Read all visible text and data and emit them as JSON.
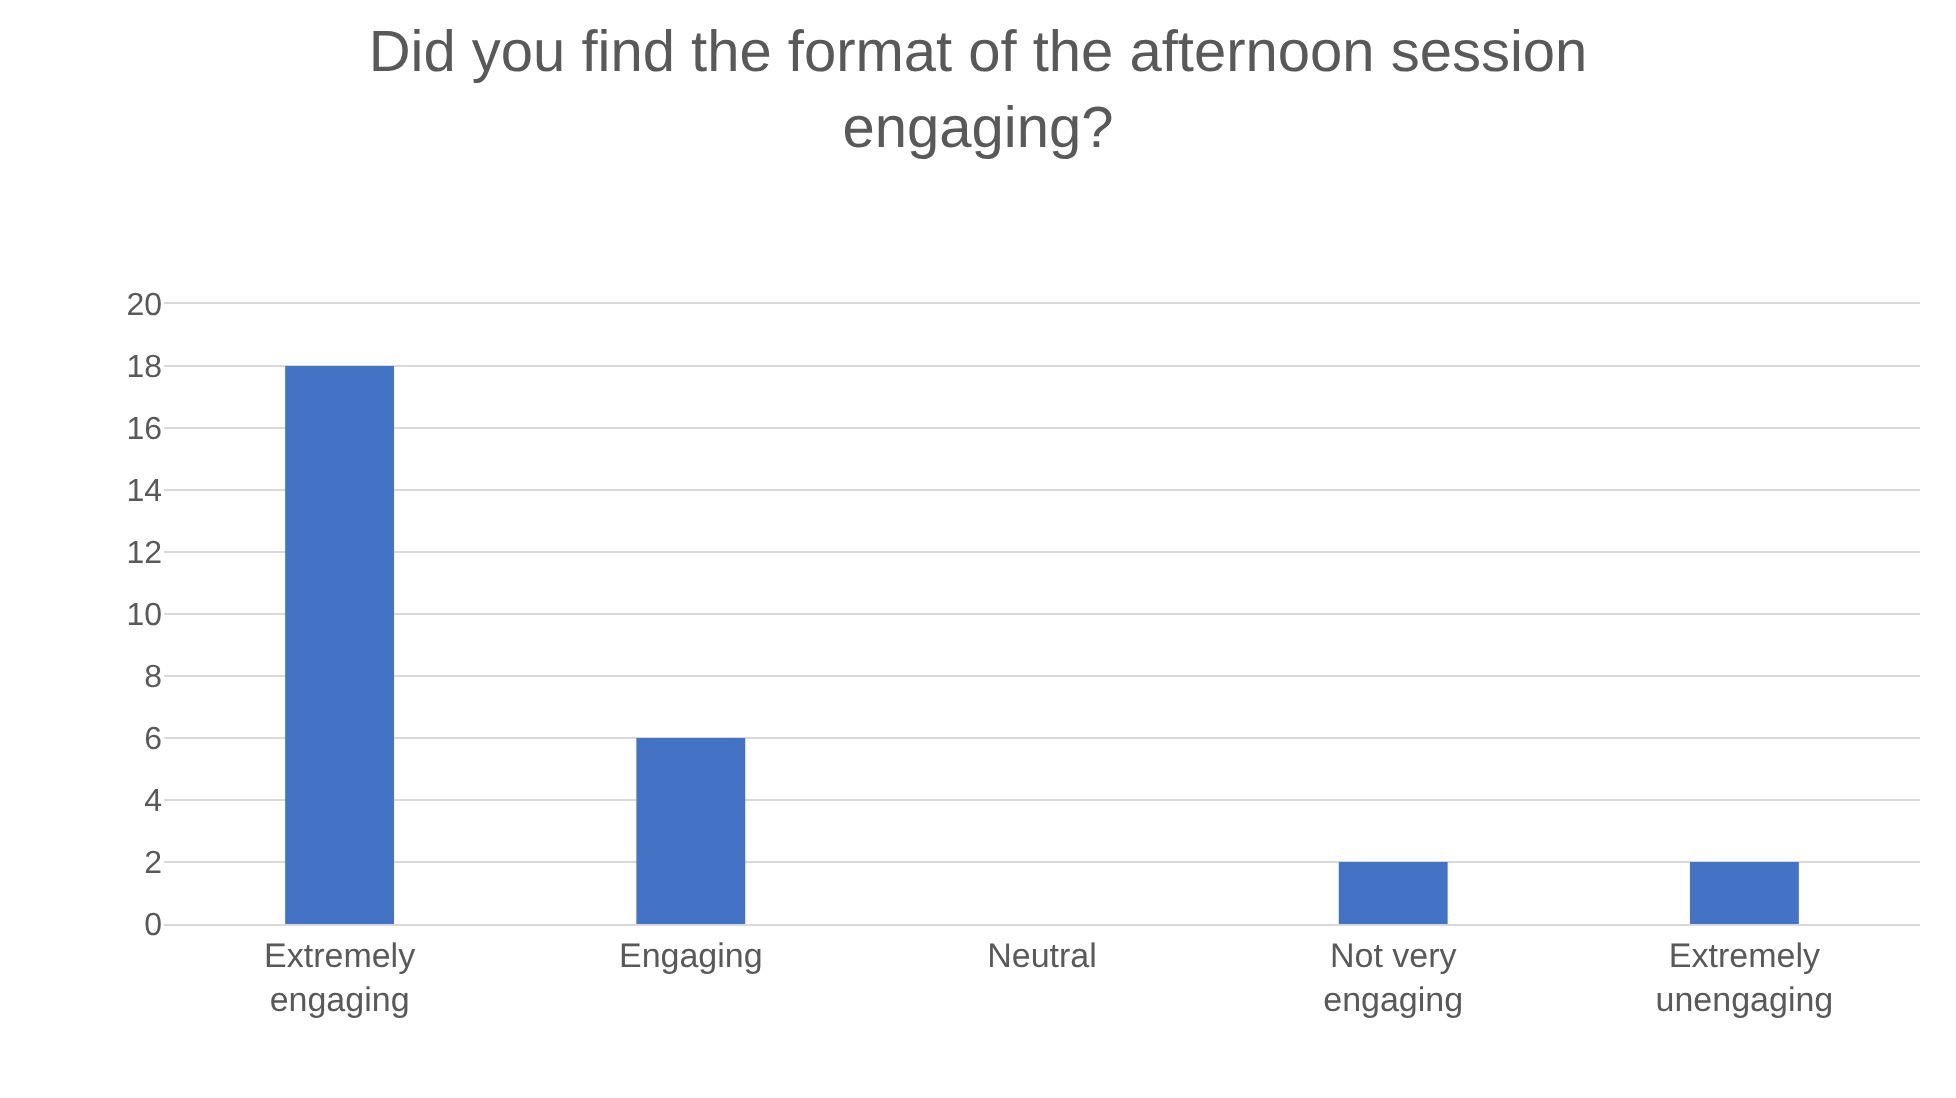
{
  "chart_data": {
    "type": "bar",
    "title": "Did you find the format of the afternoon session engaging?",
    "categories": [
      "Extremely engaging",
      "Engaging",
      "Neutral",
      "Not very engaging",
      "Extremely unengaging"
    ],
    "values": [
      18,
      6,
      0,
      2,
      2
    ],
    "color": "#4472c4",
    "ylim": [
      0,
      20
    ],
    "yticks": [
      0,
      2,
      4,
      6,
      8,
      10,
      12,
      14,
      16,
      18,
      20
    ],
    "grid": "y"
  }
}
